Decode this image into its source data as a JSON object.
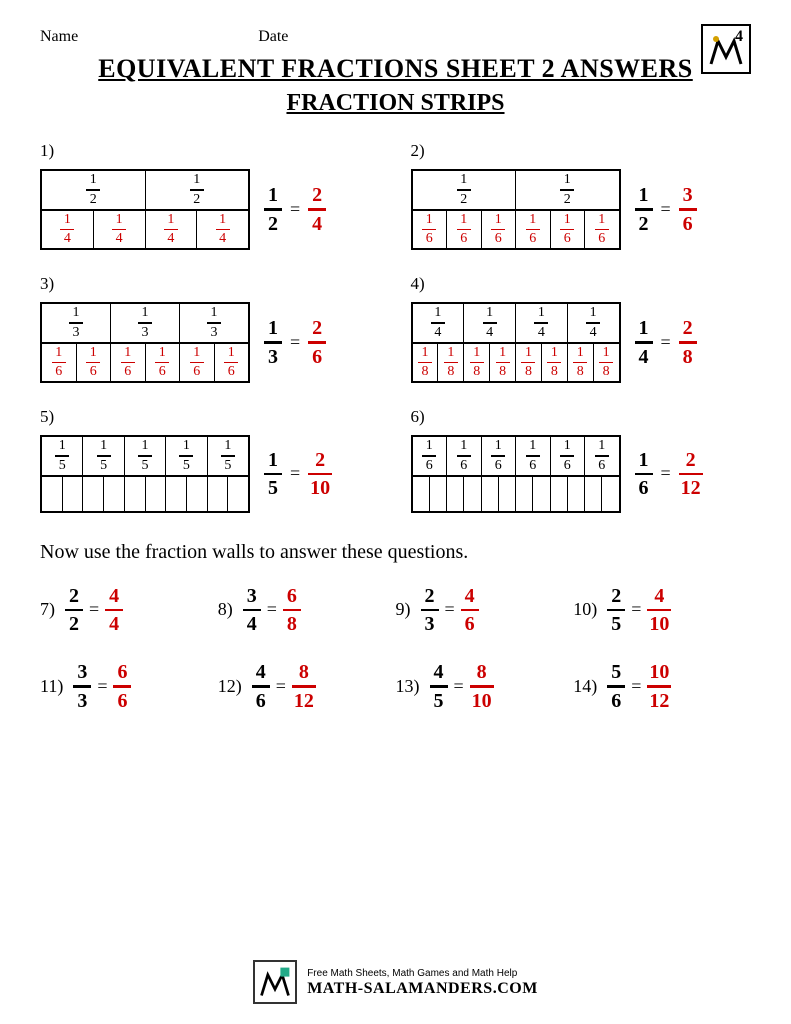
{
  "header": {
    "name_label": "Name",
    "date_label": "Date",
    "grade_badge": "4"
  },
  "titles": {
    "main": "EQUIVALENT FRACTIONS SHEET 2 ANSWERS",
    "sub": "FRACTION STRIPS"
  },
  "colors": {
    "text": "#000000",
    "answer": "#cc0000",
    "border": "#000000",
    "background": "#ffffff"
  },
  "strip_problems": [
    {
      "num": "1)",
      "rows": [
        {
          "cells": [
            {
              "n": "1",
              "d": "2"
            },
            {
              "n": "1",
              "d": "2"
            }
          ],
          "color": "black"
        },
        {
          "cells": [
            {
              "n": "1",
              "d": "4"
            },
            {
              "n": "1",
              "d": "4"
            },
            {
              "n": "1",
              "d": "4"
            },
            {
              "n": "1",
              "d": "4"
            }
          ],
          "color": "red"
        }
      ],
      "lhs": {
        "n": "1",
        "d": "2"
      },
      "rhs": {
        "n": "2",
        "d": "4"
      }
    },
    {
      "num": "2)",
      "rows": [
        {
          "cells": [
            {
              "n": "1",
              "d": "2"
            },
            {
              "n": "1",
              "d": "2"
            }
          ],
          "color": "black"
        },
        {
          "cells": [
            {
              "n": "1",
              "d": "6"
            },
            {
              "n": "1",
              "d": "6"
            },
            {
              "n": "1",
              "d": "6"
            },
            {
              "n": "1",
              "d": "6"
            },
            {
              "n": "1",
              "d": "6"
            },
            {
              "n": "1",
              "d": "6"
            }
          ],
          "color": "red"
        }
      ],
      "lhs": {
        "n": "1",
        "d": "2"
      },
      "rhs": {
        "n": "3",
        "d": "6"
      }
    },
    {
      "num": "3)",
      "rows": [
        {
          "cells": [
            {
              "n": "1",
              "d": "3"
            },
            {
              "n": "1",
              "d": "3"
            },
            {
              "n": "1",
              "d": "3"
            }
          ],
          "color": "black"
        },
        {
          "cells": [
            {
              "n": "1",
              "d": "6"
            },
            {
              "n": "1",
              "d": "6"
            },
            {
              "n": "1",
              "d": "6"
            },
            {
              "n": "1",
              "d": "6"
            },
            {
              "n": "1",
              "d": "6"
            },
            {
              "n": "1",
              "d": "6"
            }
          ],
          "color": "red"
        }
      ],
      "lhs": {
        "n": "1",
        "d": "3"
      },
      "rhs": {
        "n": "2",
        "d": "6"
      }
    },
    {
      "num": "4)",
      "rows": [
        {
          "cells": [
            {
              "n": "1",
              "d": "4"
            },
            {
              "n": "1",
              "d": "4"
            },
            {
              "n": "1",
              "d": "4"
            },
            {
              "n": "1",
              "d": "4"
            }
          ],
          "color": "black"
        },
        {
          "cells": [
            {
              "n": "1",
              "d": "8"
            },
            {
              "n": "1",
              "d": "8"
            },
            {
              "n": "1",
              "d": "8"
            },
            {
              "n": "1",
              "d": "8"
            },
            {
              "n": "1",
              "d": "8"
            },
            {
              "n": "1",
              "d": "8"
            },
            {
              "n": "1",
              "d": "8"
            },
            {
              "n": "1",
              "d": "8"
            }
          ],
          "color": "red"
        }
      ],
      "lhs": {
        "n": "1",
        "d": "4"
      },
      "rhs": {
        "n": "2",
        "d": "8"
      }
    },
    {
      "num": "5)",
      "rows": [
        {
          "cells": [
            {
              "n": "1",
              "d": "5"
            },
            {
              "n": "1",
              "d": "5"
            },
            {
              "n": "1",
              "d": "5"
            },
            {
              "n": "1",
              "d": "5"
            },
            {
              "n": "1",
              "d": "5"
            }
          ],
          "color": "black"
        },
        {
          "cells": [
            {},
            {},
            {},
            {},
            {},
            {},
            {},
            {},
            {},
            {}
          ],
          "blank": true
        }
      ],
      "lhs": {
        "n": "1",
        "d": "5"
      },
      "rhs": {
        "n": "2",
        "d": "10"
      }
    },
    {
      "num": "6)",
      "rows": [
        {
          "cells": [
            {
              "n": "1",
              "d": "6"
            },
            {
              "n": "1",
              "d": "6"
            },
            {
              "n": "1",
              "d": "6"
            },
            {
              "n": "1",
              "d": "6"
            },
            {
              "n": "1",
              "d": "6"
            },
            {
              "n": "1",
              "d": "6"
            }
          ],
          "color": "black"
        },
        {
          "cells": [
            {},
            {},
            {},
            {},
            {},
            {},
            {},
            {},
            {},
            {},
            {},
            {}
          ],
          "blank": true
        }
      ],
      "lhs": {
        "n": "1",
        "d": "6"
      },
      "rhs": {
        "n": "2",
        "d": "12"
      }
    }
  ],
  "instruction": "Now use the fraction walls to answer these questions.",
  "questions": [
    {
      "num": "7)",
      "lhs": {
        "n": "2",
        "d": "2"
      },
      "rhs": {
        "n": "4",
        "d": "4"
      }
    },
    {
      "num": "8)",
      "lhs": {
        "n": "3",
        "d": "4"
      },
      "rhs": {
        "n": "6",
        "d": "8"
      }
    },
    {
      "num": "9)",
      "lhs": {
        "n": "2",
        "d": "3"
      },
      "rhs": {
        "n": "4",
        "d": "6"
      }
    },
    {
      "num": "10)",
      "lhs": {
        "n": "2",
        "d": "5"
      },
      "rhs": {
        "n": "4",
        "d": "10"
      }
    },
    {
      "num": "11)",
      "lhs": {
        "n": "3",
        "d": "3"
      },
      "rhs": {
        "n": "6",
        "d": "6"
      }
    },
    {
      "num": "12)",
      "lhs": {
        "n": "4",
        "d": "6"
      },
      "rhs": {
        "n": "8",
        "d": "12"
      }
    },
    {
      "num": "13)",
      "lhs": {
        "n": "4",
        "d": "5"
      },
      "rhs": {
        "n": "8",
        "d": "10"
      }
    },
    {
      "num": "14)",
      "lhs": {
        "n": "5",
        "d": "6"
      },
      "rhs": {
        "n": "10",
        "d": "12"
      }
    }
  ],
  "footer": {
    "tagline": "Free Math Sheets, Math Games and Math Help",
    "site": "MATH-SALAMANDERS.COM"
  }
}
